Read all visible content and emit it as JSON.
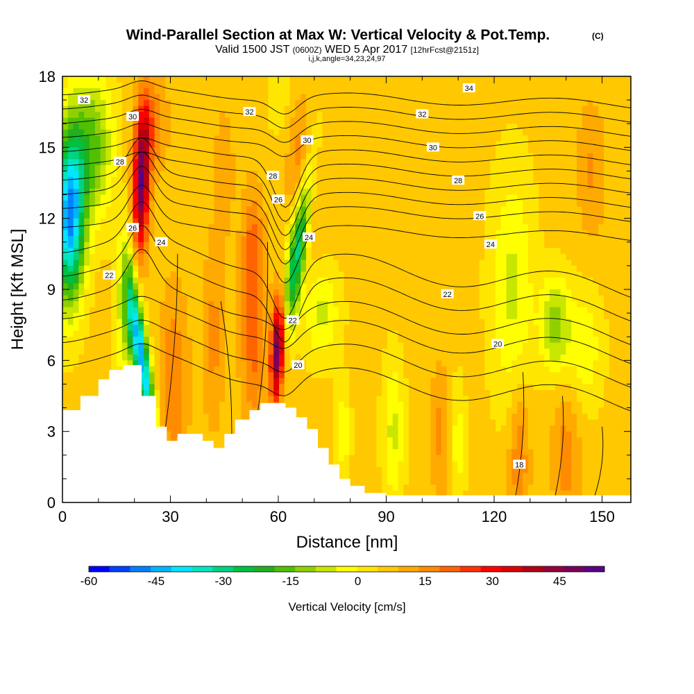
{
  "title": {
    "main": "Wind-Parallel Section at Max W: Vertical Velocity & Pot.Temp.",
    "copyright": "(C)",
    "valid_prefix": "Valid 1500 JST",
    "utc": "(0600Z)",
    "date": "WED 5 Apr 2017",
    "forecast": "[12hrFcst@2151z]",
    "indices": "i,j,k,angle=34,23,24,97"
  },
  "chart_data": {
    "type": "heatmap",
    "xlabel": "Distance [nm]",
    "ylabel": "Height [Kft MSL]",
    "xlim": [
      0,
      158
    ],
    "ylim": [
      0,
      18
    ],
    "x_ticks": [
      "0",
      "30",
      "60",
      "90",
      "120",
      "150"
    ],
    "y_ticks": [
      "0",
      "3",
      "6",
      "9",
      "12",
      "15",
      "18"
    ],
    "x_tick_values": [
      0,
      30,
      60,
      90,
      120,
      150
    ],
    "y_tick_values": [
      0,
      3,
      6,
      9,
      12,
      15,
      18
    ],
    "colorbar": {
      "label": "Vertical Velocity [cm/s]",
      "tick_labels": [
        "-60",
        "-45",
        "-30",
        "-15",
        "0",
        "15",
        "30",
        "45"
      ],
      "tick_values": [
        -60,
        -45,
        -30,
        -15,
        0,
        15,
        30,
        45
      ],
      "range": [
        -60,
        55
      ],
      "colors": [
        "#0000ff",
        "#0040ff",
        "#0080ff",
        "#00b4ff",
        "#00e6ff",
        "#00e6c0",
        "#00d280",
        "#00c040",
        "#20b020",
        "#50c000",
        "#90d000",
        "#c8e600",
        "#ffff00",
        "#ffe600",
        "#ffc800",
        "#ffaa00",
        "#ff8c00",
        "#ff6400",
        "#ff3200",
        "#ff0000",
        "#dc0000",
        "#b40014",
        "#96003c",
        "#78005a",
        "#5a0082"
      ]
    },
    "contour_labels": [
      {
        "text": "32",
        "x": 6,
        "y": 17.0
      },
      {
        "text": "30",
        "x": 19.5,
        "y": 16.3
      },
      {
        "text": "28",
        "x": 16,
        "y": 14.4
      },
      {
        "text": "26",
        "x": 19.5,
        "y": 11.6
      },
      {
        "text": "24",
        "x": 27.5,
        "y": 11.0
      },
      {
        "text": "22",
        "x": 13,
        "y": 9.6
      },
      {
        "text": "32",
        "x": 52,
        "y": 16.5
      },
      {
        "text": "30",
        "x": 68,
        "y": 15.3
      },
      {
        "text": "28",
        "x": 58.5,
        "y": 13.8
      },
      {
        "text": "26",
        "x": 60,
        "y": 12.8
      },
      {
        "text": "24",
        "x": 68.5,
        "y": 11.2
      },
      {
        "text": "22",
        "x": 64,
        "y": 7.7
      },
      {
        "text": "20",
        "x": 65.5,
        "y": 5.8
      },
      {
        "text": "34",
        "x": 113,
        "y": 17.5
      },
      {
        "text": "32",
        "x": 100,
        "y": 16.4
      },
      {
        "text": "30",
        "x": 103,
        "y": 15.0
      },
      {
        "text": "28",
        "x": 110,
        "y": 13.6
      },
      {
        "text": "26",
        "x": 116,
        "y": 12.1
      },
      {
        "text": "24",
        "x": 119,
        "y": 10.9
      },
      {
        "text": "22",
        "x": 107,
        "y": 8.8
      },
      {
        "text": "20",
        "x": 121,
        "y": 6.7
      },
      {
        "text": "18",
        "x": 127,
        "y": 1.6
      }
    ]
  }
}
